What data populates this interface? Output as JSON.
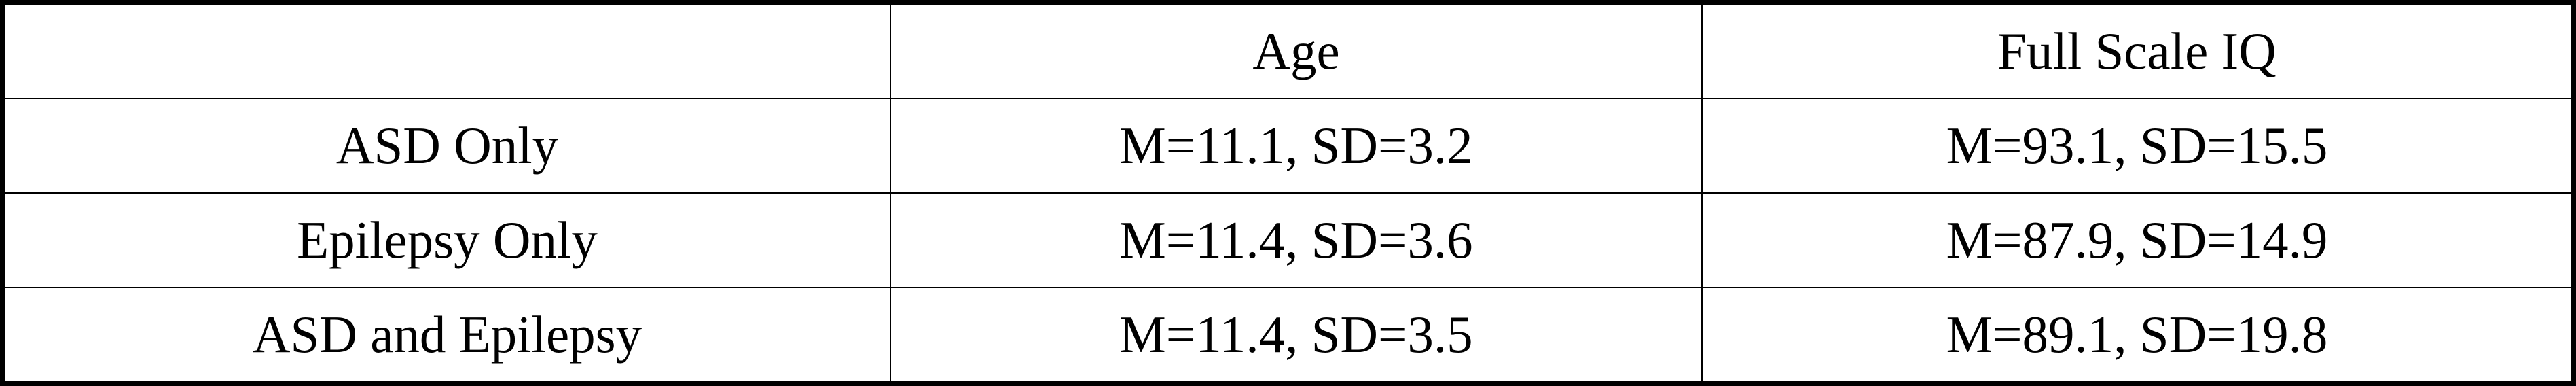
{
  "table": {
    "header": [
      "Age",
      "Full Scale IQ"
    ],
    "rows": [
      [
        "ASD Only",
        "M=11.1, SD=3.2",
        "M=93.1, SD=15.5"
      ],
      [
        "Epilepsy Only",
        "M=11.4, SD=3.6",
        "M=87.9, SD=14.9"
      ],
      [
        "ASD and Epilepsy",
        "M=11.4, SD=3.5",
        "M=89.1, SD=19.8"
      ]
    ]
  }
}
